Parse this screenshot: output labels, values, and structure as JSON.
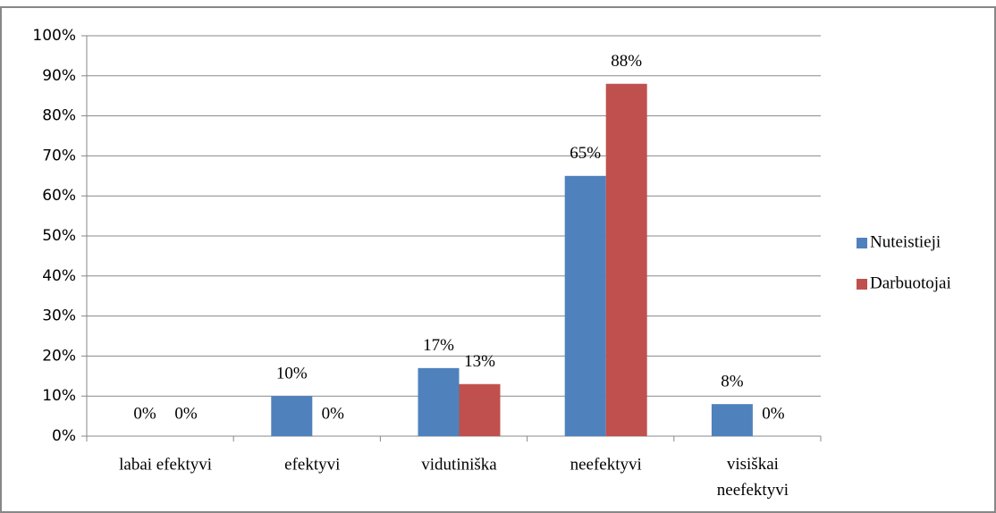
{
  "chart_data": {
    "type": "bar",
    "categories": [
      "labai efektyvi",
      "efektyvi",
      "vidutiniška",
      "neefektyvi",
      "visiškai neefektyvi"
    ],
    "series": [
      {
        "name": "Nuteistieji",
        "color": "#4f81bd",
        "values": [
          0,
          10,
          17,
          65,
          8
        ],
        "value_labels": [
          "0%",
          "10%",
          "17%",
          "65%",
          "8%"
        ]
      },
      {
        "name": "Darbuotojai",
        "color": "#c0504d",
        "values": [
          0,
          0,
          13,
          88,
          0
        ],
        "value_labels": [
          "0%",
          "0%",
          "13%",
          "88%",
          "0%"
        ]
      }
    ],
    "ylim": [
      0,
      100
    ],
    "yticks": [
      {
        "value": 0,
        "label": "0%"
      },
      {
        "value": 10,
        "label": "10%"
      },
      {
        "value": 20,
        "label": "20%"
      },
      {
        "value": 30,
        "label": "30%"
      },
      {
        "value": 40,
        "label": "40%"
      },
      {
        "value": 50,
        "label": "50%"
      },
      {
        "value": 60,
        "label": "60%"
      },
      {
        "value": 70,
        "label": "70%"
      },
      {
        "value": 80,
        "label": "80%"
      },
      {
        "value": 90,
        "label": "90%"
      },
      {
        "value": 100,
        "label": "100%"
      }
    ],
    "grid": true,
    "legend": "right"
  }
}
